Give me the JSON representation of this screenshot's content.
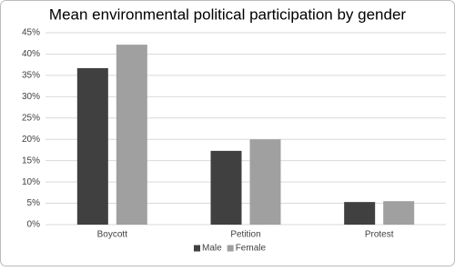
{
  "chart_data": {
    "type": "bar",
    "title": "Mean environmental political participation by gender",
    "categories": [
      "Boycott",
      "Petition",
      "Protest"
    ],
    "series": [
      {
        "name": "Male",
        "color": "#404040",
        "values": [
          36.7,
          17.3,
          5.3
        ]
      },
      {
        "name": "Female",
        "color": "#a0a0a0",
        "values": [
          42.2,
          20.0,
          5.5
        ]
      }
    ],
    "ylim": [
      0,
      45
    ],
    "yticks": [
      {
        "value": 0,
        "label": "0%"
      },
      {
        "value": 5,
        "label": "5%"
      },
      {
        "value": 10,
        "label": "10%"
      },
      {
        "value": 15,
        "label": "15%"
      },
      {
        "value": 20,
        "label": "20%"
      },
      {
        "value": 25,
        "label": "25%"
      },
      {
        "value": 30,
        "label": "30%"
      },
      {
        "value": 35,
        "label": "35%"
      },
      {
        "value": 40,
        "label": "40%"
      },
      {
        "value": 45,
        "label": "45%"
      }
    ],
    "grid": true,
    "legend": "bottom"
  }
}
